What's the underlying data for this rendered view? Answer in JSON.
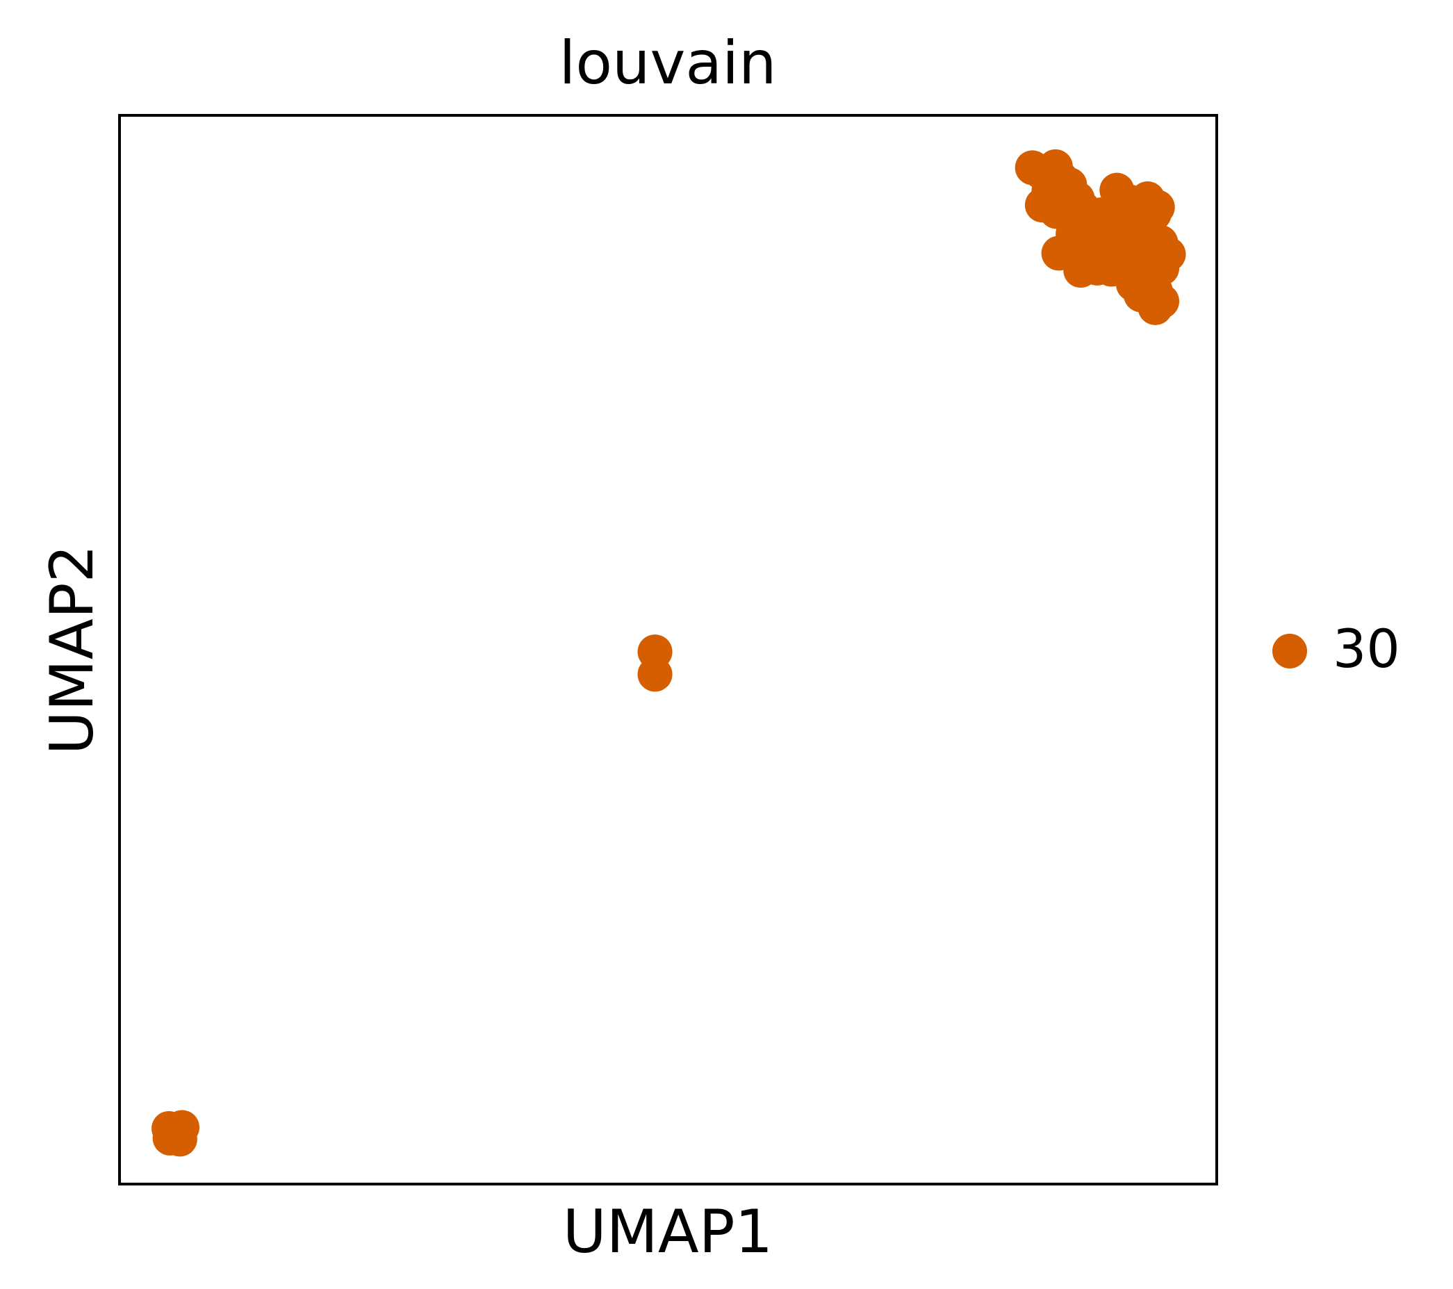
{
  "chart_data": {
    "type": "scatter",
    "title": "louvain",
    "xlabel": "UMAP1",
    "ylabel": "UMAP2",
    "grid": false,
    "ticks": false,
    "xlim": [
      0,
      100
    ],
    "ylim": [
      0,
      100
    ],
    "legend": {
      "position": "right",
      "entries": [
        {
          "label": "30",
          "color": "#d55e00"
        }
      ]
    },
    "series": [
      {
        "name": "30",
        "color": "#d55e00",
        "points": [
          [
            83.2,
            95.1
          ],
          [
            84.0,
            94.7
          ],
          [
            85.3,
            95.2
          ],
          [
            85.8,
            94.1
          ],
          [
            86.6,
            93.5
          ],
          [
            87.3,
            92.2
          ],
          [
            84.7,
            92.9
          ],
          [
            84.1,
            91.6
          ],
          [
            85.4,
            91.0
          ],
          [
            86.4,
            91.8
          ],
          [
            87.8,
            91.3
          ],
          [
            88.1,
            90.0
          ],
          [
            89.5,
            90.7
          ],
          [
            90.2,
            89.4
          ],
          [
            91.0,
            91.4
          ],
          [
            92.1,
            91.9
          ],
          [
            92.9,
            91.0
          ],
          [
            93.7,
            92.2
          ],
          [
            94.3,
            90.8
          ],
          [
            93.9,
            89.2
          ],
          [
            92.6,
            88.6
          ],
          [
            91.2,
            88.1
          ],
          [
            90.0,
            87.5
          ],
          [
            88.6,
            88.3
          ],
          [
            87.2,
            87.1
          ],
          [
            86.9,
            88.9
          ],
          [
            88.4,
            86.7
          ],
          [
            89.6,
            86.2
          ],
          [
            91.1,
            86.9
          ],
          [
            92.5,
            87.3
          ],
          [
            93.8,
            87.6
          ],
          [
            94.9,
            88.1
          ],
          [
            95.6,
            87.0
          ],
          [
            95.0,
            85.7
          ],
          [
            93.7,
            85.1
          ],
          [
            92.4,
            84.2
          ],
          [
            93.1,
            83.2
          ],
          [
            94.4,
            83.6
          ],
          [
            95.0,
            82.6
          ],
          [
            94.4,
            82.0
          ],
          [
            92.6,
            86.0
          ],
          [
            90.4,
            85.6
          ],
          [
            89.1,
            85.7
          ],
          [
            87.6,
            85.5
          ],
          [
            85.6,
            87.1
          ],
          [
            94.6,
            91.4
          ],
          [
            90.9,
            93.0
          ],
          [
            89.9,
            90.0
          ],
          [
            91.5,
            89.6
          ],
          [
            93.3,
            89.9
          ],
          [
            48.8,
            49.8
          ],
          [
            48.8,
            47.7
          ],
          [
            4.5,
            5.2
          ],
          [
            5.7,
            5.3
          ],
          [
            4.6,
            4.3
          ],
          [
            5.5,
            4.2
          ],
          [
            5.1,
            4.8
          ]
        ]
      }
    ]
  }
}
